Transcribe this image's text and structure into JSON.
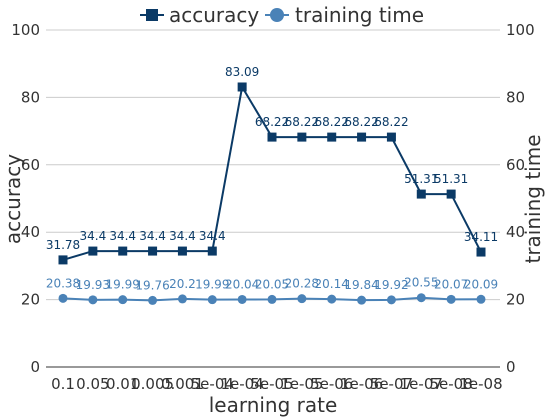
{
  "chart_data": {
    "type": "line",
    "xlabel": "learning rate",
    "ylabel_left": "accuracy",
    "ylabel_right": "training time",
    "categories": [
      "0.1",
      "0.05",
      "0.01",
      "0.005",
      "0.001",
      "5e-04",
      "1e-04",
      "5e-05",
      "1e-05",
      "5e-06",
      "1e-06",
      "5e-07",
      "1e-07",
      "5e-08",
      "1e-08"
    ],
    "category_labels_shown": [
      "0.1",
      "0.05",
      "0.01",
      "0.005",
      "0.001",
      "5e-04",
      "1e-04",
      "5e-05",
      "1e-05",
      "5e-06",
      "1e-06",
      "5e-07",
      "1e-07",
      "5e-08",
      "1e-08"
    ],
    "ylim_left": [
      0,
      100
    ],
    "ylim_right": [
      0,
      100
    ],
    "yticks": [
      0,
      20,
      40,
      60,
      80,
      100
    ],
    "grid": "horizontal",
    "legend_position": "top-center",
    "series": [
      {
        "name": "accuracy",
        "axis": "left",
        "marker": "square",
        "color": "#0b3a66",
        "values": [
          31.78,
          34.4,
          34.4,
          34.4,
          34.4,
          34.4,
          83.09,
          68.22,
          68.22,
          68.22,
          68.22,
          68.22,
          51.31,
          51.31,
          34.11
        ],
        "labels": [
          "31.78",
          "34.4",
          "34.4",
          "34.4",
          "34.4",
          "34.4",
          "83.09",
          "68.22",
          "68.22",
          "68.22",
          "68.22",
          "68.22",
          "51.31",
          "51.31",
          "34.11"
        ]
      },
      {
        "name": "training time",
        "axis": "right",
        "marker": "circle",
        "color": "#4a82b7",
        "values": [
          20.38,
          19.93,
          19.99,
          19.76,
          20.2,
          19.99,
          20.04,
          20.05,
          20.28,
          20.14,
          19.84,
          19.92,
          20.55,
          20.07,
          20.09
        ],
        "labels": [
          "20.38",
          "19.93",
          "19.99",
          "19.76",
          "20.2",
          "19.99",
          "20.04",
          "20.05",
          "20.28",
          "20.14",
          "19.84",
          "19.92",
          "20.55",
          "20.07",
          "20.09"
        ]
      }
    ]
  }
}
